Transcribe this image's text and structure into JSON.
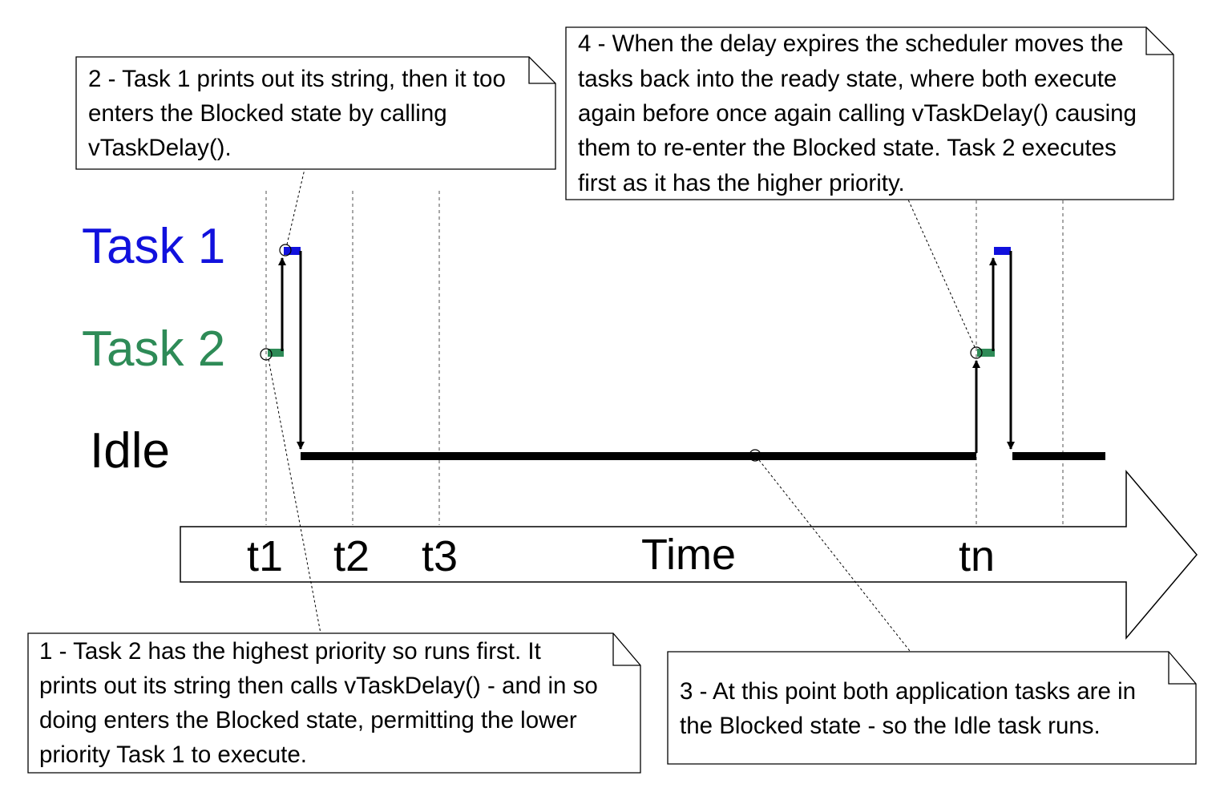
{
  "lanes": {
    "task1": {
      "label": "Task 1",
      "color": "#1111dd"
    },
    "task2": {
      "label": "Task 2",
      "color": "#2e8b57"
    },
    "idle": {
      "label": "Idle",
      "color": "#000000"
    }
  },
  "time_axis": {
    "label": "Time",
    "ticks": [
      "t1",
      "t2",
      "t3",
      "tn"
    ]
  },
  "notes": [
    {
      "id": "note-1",
      "lines": [
        "1 - Task 2 has the highest priority so runs first.  It",
        "prints out its string then calls vTaskDelay() - and in so",
        "doing enters the Blocked state, permitting the lower",
        "priority Task 1 to execute."
      ]
    },
    {
      "id": "note-2",
      "lines": [
        "2 - Task 1 prints out its string, then it too",
        "enters the Blocked state by calling",
        "vTaskDelay()."
      ]
    },
    {
      "id": "note-3",
      "lines": [
        "3 - At this point both application tasks are in",
        "the Blocked state - so the Idle task runs."
      ]
    },
    {
      "id": "note-4",
      "lines": [
        "4 - When the delay expires the scheduler moves the",
        "tasks back into the ready state, where both execute",
        "again before once again calling vTaskDelay() causing",
        "them to re-enter the Blocked state.  Task 2 executes",
        "first as it has the higher priority."
      ]
    }
  ]
}
